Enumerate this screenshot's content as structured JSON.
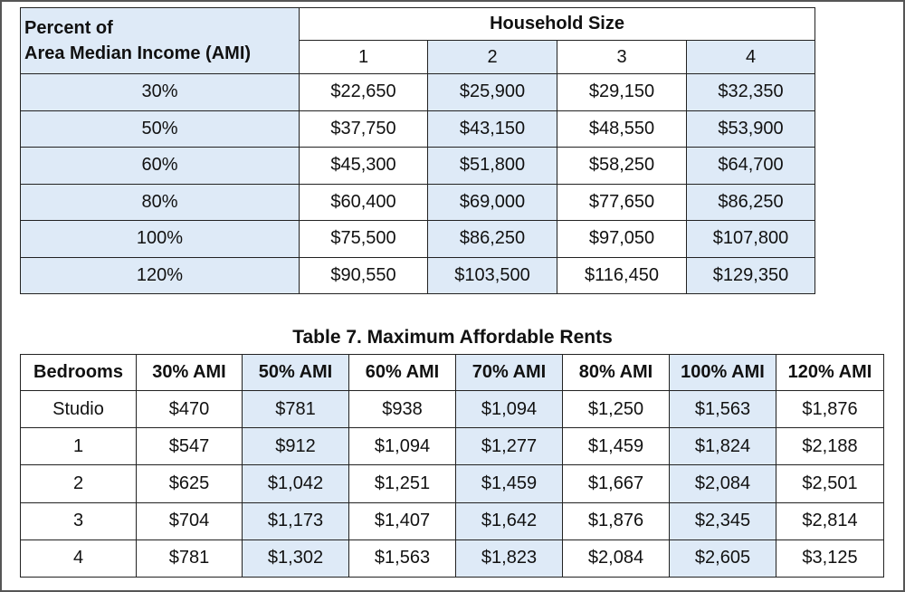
{
  "table6": {
    "corner_line1": "Percent of",
    "corner_line2": "Area Median Income (AMI)",
    "group_header": "Household Size",
    "sizes": [
      "1",
      "2",
      "3",
      "4"
    ],
    "rows": [
      {
        "label": "30%",
        "values": [
          "$22,650",
          "$25,900",
          "$29,150",
          "$32,350"
        ]
      },
      {
        "label": "50%",
        "values": [
          "$37,750",
          "$43,150",
          "$48,550",
          "$53,900"
        ]
      },
      {
        "label": "60%",
        "values": [
          "$45,300",
          "$51,800",
          "$58,250",
          "$64,700"
        ]
      },
      {
        "label": "80%",
        "values": [
          "$60,400",
          "$69,000",
          "$77,650",
          "$86,250"
        ]
      },
      {
        "label": "100%",
        "values": [
          "$75,500",
          "$86,250",
          "$97,050",
          "$107,800"
        ]
      },
      {
        "label": "120%",
        "values": [
          "$90,550",
          "$103,500",
          "$116,450",
          "$129,350"
        ]
      }
    ]
  },
  "table7": {
    "title": "Table 7. Maximum Affordable Rents",
    "headers": [
      "Bedrooms",
      "30% AMI",
      "50% AMI",
      "60% AMI",
      "70% AMI",
      "80% AMI",
      "100% AMI",
      "120% AMI"
    ],
    "rows": [
      {
        "label": "Studio",
        "values": [
          "$470",
          "$781",
          "$938",
          "$1,094",
          "$1,250",
          "$1,563",
          "$1,876"
        ]
      },
      {
        "label": "1",
        "values": [
          "$547",
          "$912",
          "$1,094",
          "$1,277",
          "$1,459",
          "$1,824",
          "$2,188"
        ]
      },
      {
        "label": "2",
        "values": [
          "$625",
          "$1,042",
          "$1,251",
          "$1,459",
          "$1,667",
          "$2,084",
          "$2,501"
        ]
      },
      {
        "label": "3",
        "values": [
          "$704",
          "$1,173",
          "$1,407",
          "$1,642",
          "$1,876",
          "$2,345",
          "$2,814"
        ]
      },
      {
        "label": "4",
        "values": [
          "$781",
          "$1,302",
          "$1,563",
          "$1,823",
          "$2,084",
          "$2,605",
          "$3,125"
        ]
      }
    ]
  }
}
